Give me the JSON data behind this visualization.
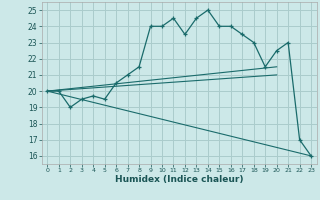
{
  "title": "",
  "xlabel": "Humidex (Indice chaleur)",
  "ylabel": "",
  "bg_color": "#cce8e8",
  "grid_color": "#aacccc",
  "line_color": "#1a6b6b",
  "xlim": [
    -0.5,
    23.5
  ],
  "ylim": [
    15.5,
    25.5
  ],
  "xticks": [
    0,
    1,
    2,
    3,
    4,
    5,
    6,
    7,
    8,
    9,
    10,
    11,
    12,
    13,
    14,
    15,
    16,
    17,
    18,
    19,
    20,
    21,
    22,
    23
  ],
  "yticks": [
    16,
    17,
    18,
    19,
    20,
    21,
    22,
    23,
    24,
    25
  ],
  "main_x": [
    0,
    1,
    2,
    3,
    4,
    5,
    6,
    7,
    8,
    9,
    10,
    11,
    12,
    13,
    14,
    15,
    16,
    17,
    18,
    19,
    20,
    21,
    22,
    23
  ],
  "main_y": [
    20.0,
    20.0,
    19.0,
    19.5,
    19.7,
    19.5,
    20.5,
    21.0,
    21.5,
    24.0,
    24.0,
    24.5,
    23.5,
    24.5,
    25.0,
    24.0,
    24.0,
    23.5,
    23.0,
    21.5,
    22.5,
    23.0,
    17.0,
    16.0
  ],
  "line1_x": [
    0,
    20
  ],
  "line1_y": [
    20.0,
    21.5
  ],
  "line2_x": [
    0,
    20
  ],
  "line2_y": [
    20.0,
    21.0
  ],
  "line3_x": [
    0,
    23
  ],
  "line3_y": [
    20.0,
    16.0
  ],
  "font_color": "#1a5555"
}
